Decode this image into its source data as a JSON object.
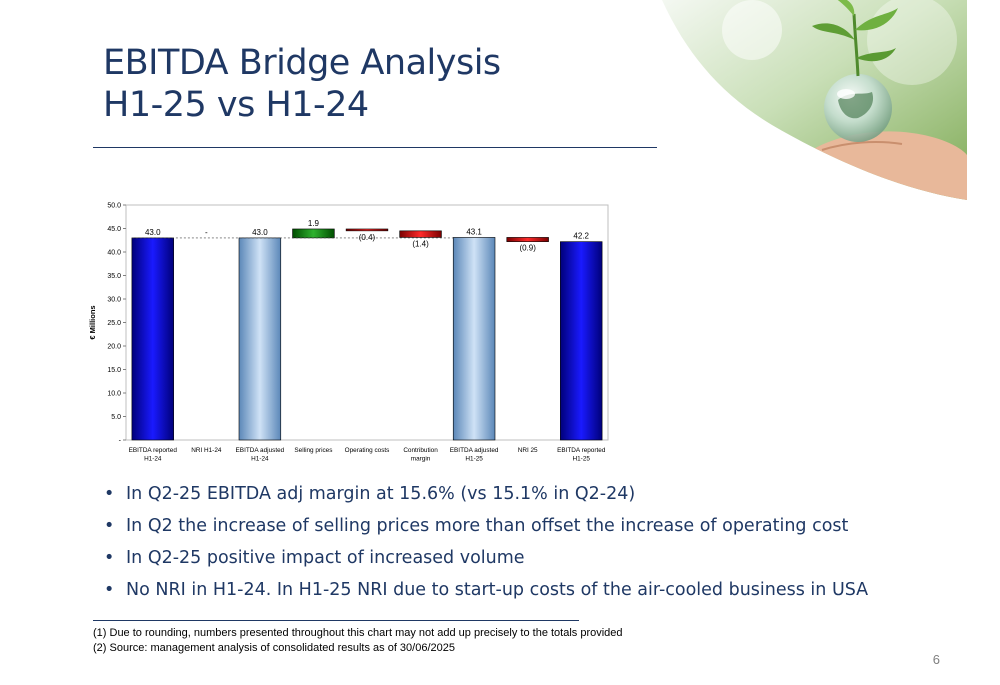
{
  "slide": {
    "title_lines": [
      "EBITDA Bridge Analysis",
      "H1-25 vs  H1-24"
    ],
    "page_number": "6",
    "bullets": [
      "In Q2-25 EBITDA adj margin at  15.6%  (vs 15.1% in Q2-24)",
      "In  Q2 the increase of selling prices more than offset the increase of operating  cost",
      "In Q2-25 positive impact of  increased volume",
      "No NRI in H1-24. In  H1-25 NRI due to start-up costs of the air-cooled business in USA"
    ],
    "footnotes": [
      "(1)  Due to rounding, numbers presented throughout this chart may not add up precisely to the totals provided",
      "(2)  Source: management analysis of consolidated results as of 30/06/2025"
    ],
    "image": {
      "icon": "plant-in-glass-globe-held-by-hand-photo"
    }
  },
  "chart_data": {
    "type": "bar",
    "subtype": "waterfall",
    "ylabel": "€ Millions",
    "ylim": [
      0,
      50
    ],
    "yticks": [
      0,
      5,
      10,
      15,
      20,
      25,
      30,
      35,
      40,
      45,
      50
    ],
    "ytick_labels": [
      "-",
      "5.0",
      "10.0",
      "15.0",
      "20.0",
      "25.0",
      "30.0",
      "35.0",
      "40.0",
      "45.0",
      "50.0"
    ],
    "grid": false,
    "legend": "none",
    "categories": [
      [
        "EBITDA reported",
        "H1-24"
      ],
      [
        "NRI H1-24"
      ],
      [
        "EBITDA adjusted",
        "H1-24"
      ],
      [
        "Selling prices"
      ],
      [
        "Operating costs"
      ],
      [
        "Contribution",
        "margin"
      ],
      [
        "EBITDA adjusted",
        "H1-25"
      ],
      [
        "NRI 25"
      ],
      [
        "EBITDA reported",
        "H1-25"
      ]
    ],
    "bars": [
      {
        "kind": "total",
        "start": 0,
        "value": 43.0,
        "label": "43.0",
        "color": "#0000cc"
      },
      {
        "kind": "delta",
        "start": 43.0,
        "value": 0,
        "label": "-",
        "color": "#ffffff"
      },
      {
        "kind": "total",
        "start": 0,
        "value": 43.0,
        "label": "43.0",
        "color": "#8db4e2"
      },
      {
        "kind": "delta",
        "start": 43.0,
        "value": 1.9,
        "label": "1.9",
        "color": "#008000"
      },
      {
        "kind": "delta",
        "start": 44.9,
        "value": -0.4,
        "label": "(0.4)",
        "color": "#cc0000"
      },
      {
        "kind": "delta",
        "start": 44.5,
        "value": -1.4,
        "label": "(1.4)",
        "color": "#cc0000"
      },
      {
        "kind": "total",
        "start": 0,
        "value": 43.1,
        "label": "43.1",
        "color": "#8db4e2"
      },
      {
        "kind": "delta",
        "start": 43.1,
        "value": -0.9,
        "label": "(0.9)",
        "color": "#cc0000"
      },
      {
        "kind": "total",
        "start": 0,
        "value": 42.2,
        "label": "42.2",
        "color": "#0000cc"
      }
    ]
  }
}
